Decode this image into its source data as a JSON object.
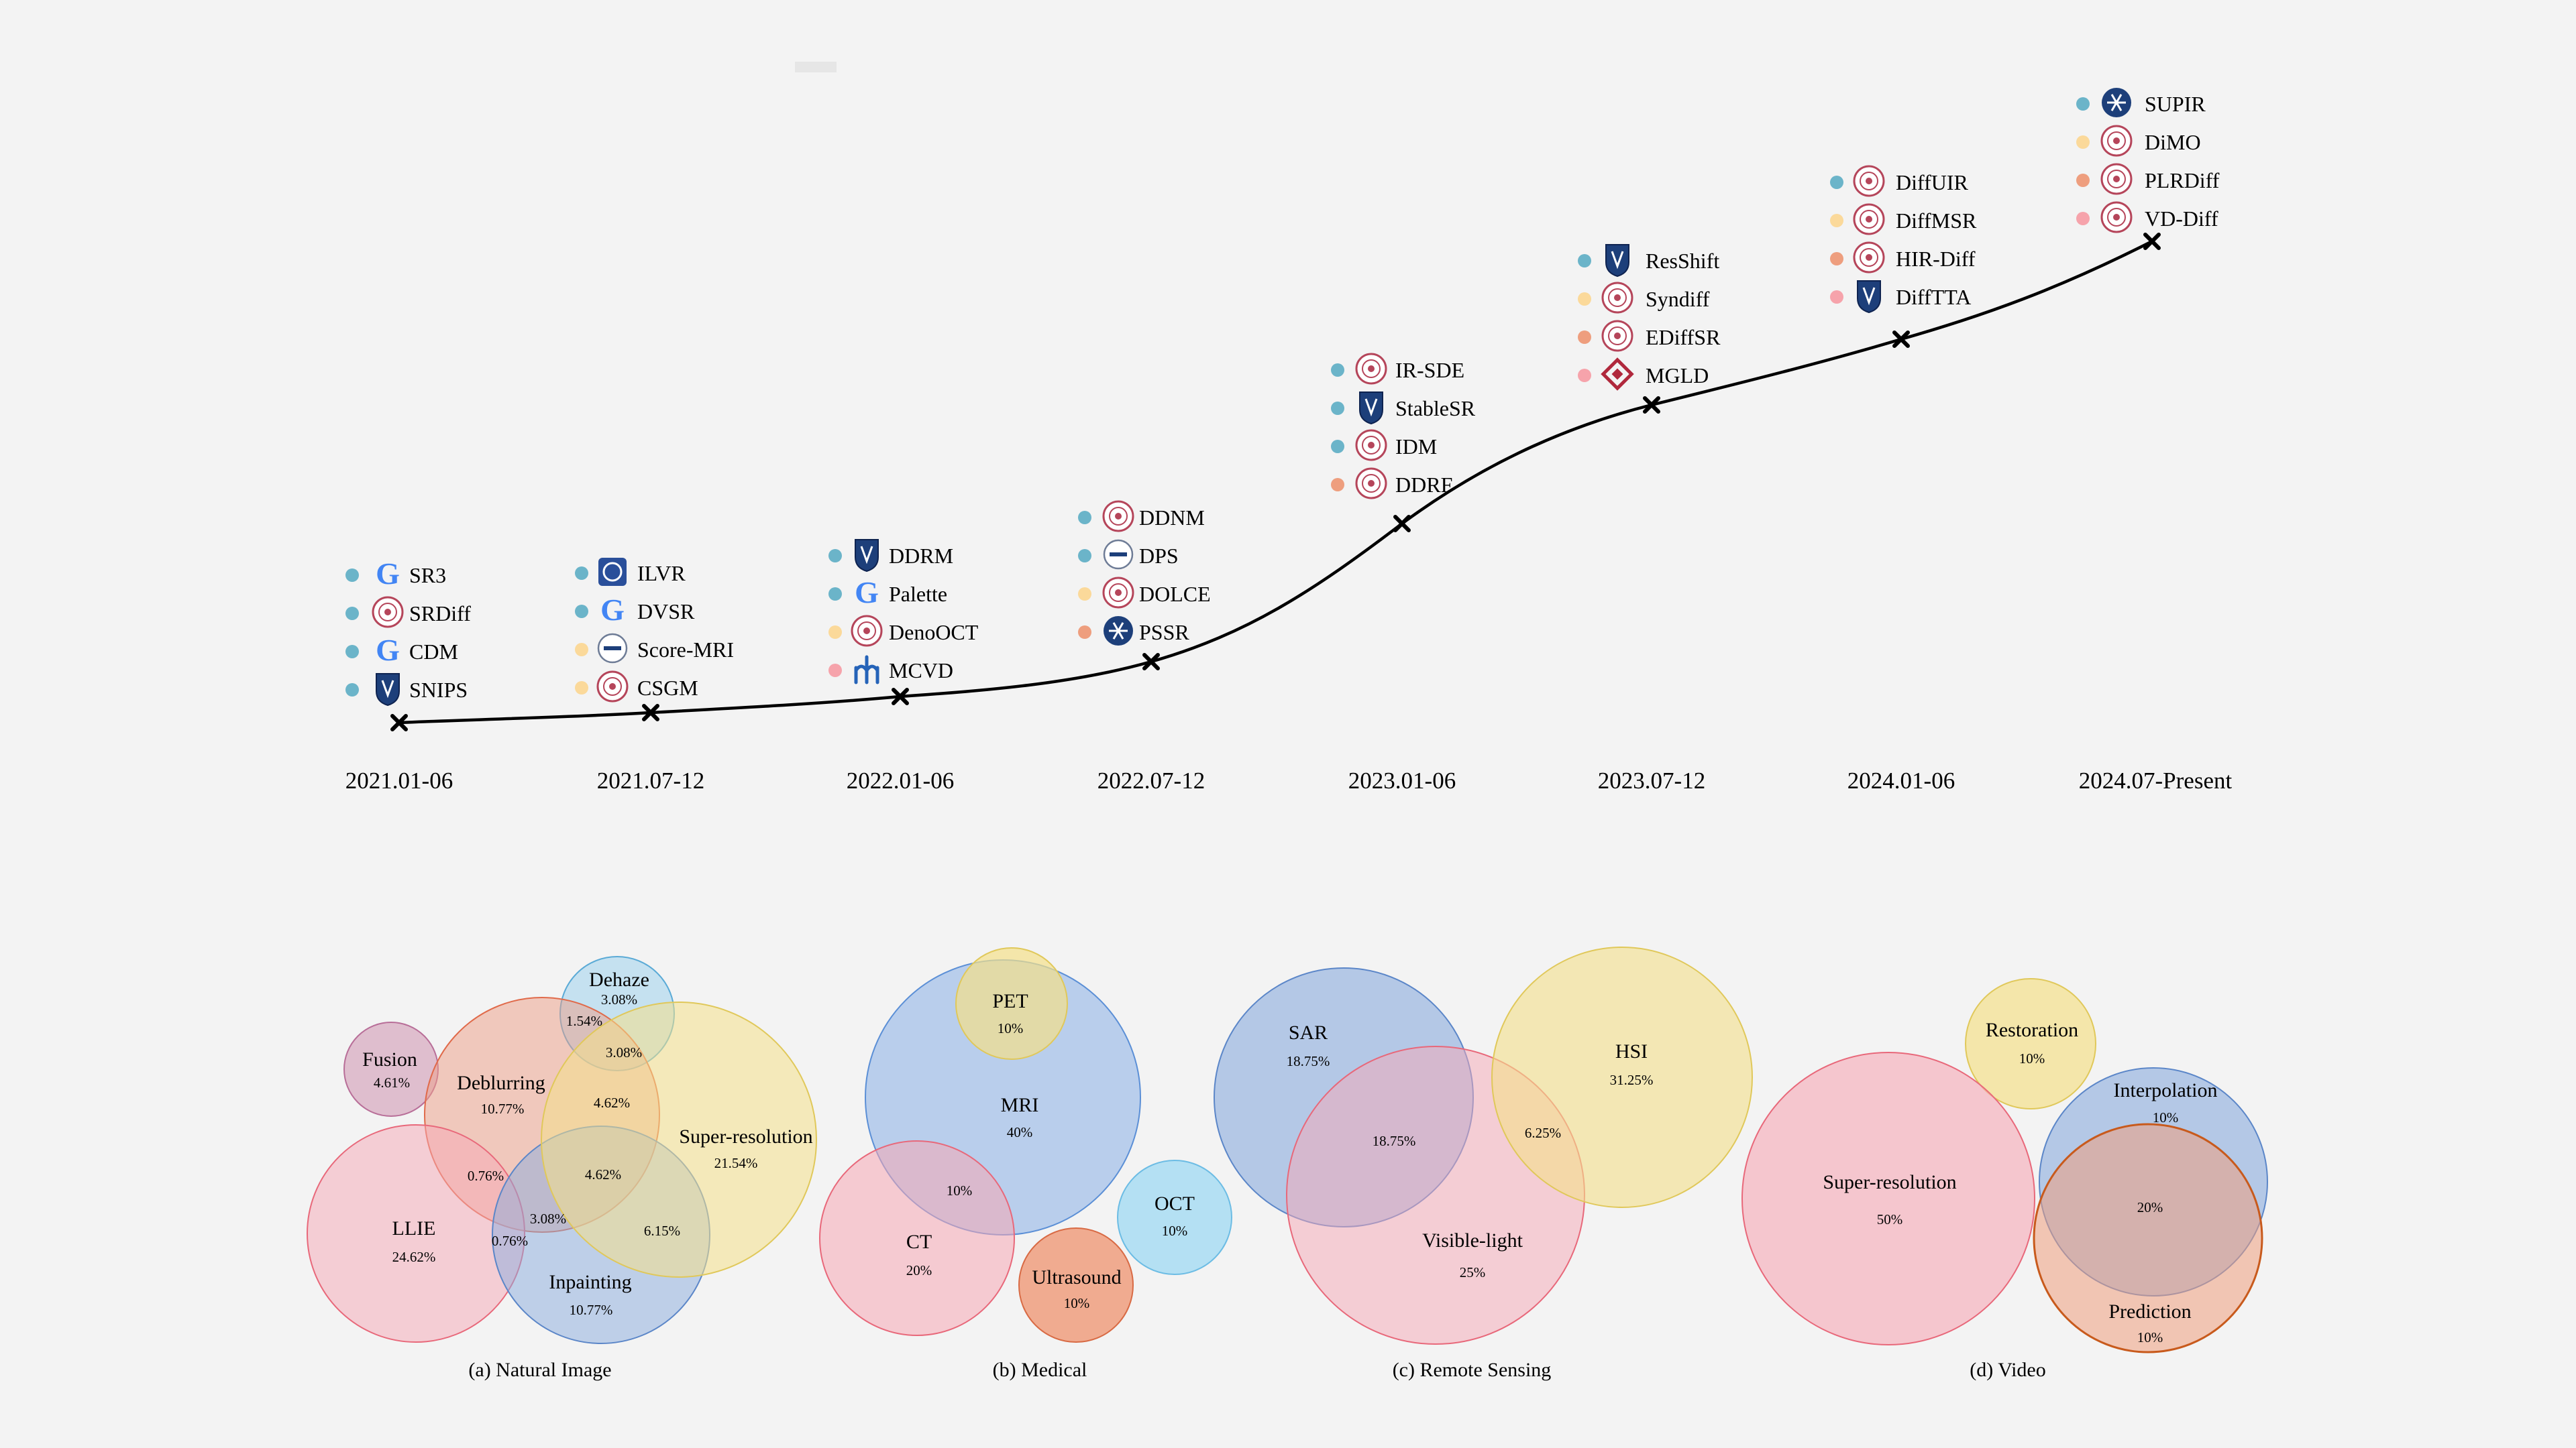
{
  "colors": {
    "natural": "#6bb4c9",
    "medical": "#fbd99a",
    "remote_sensing": "#ee9e7e",
    "video": "#f6a3ab"
  },
  "timeline": {
    "dates": [
      "2021.01-06",
      "2021.07-12",
      "2022.01-06",
      "2022.07-12",
      "2023.01-06",
      "2023.07-12",
      "2024.01-06",
      "2024.07-Present"
    ],
    "groups": [
      {
        "date": "2021.01-06",
        "methods": [
          {
            "name": "SR3",
            "category": "natural",
            "logo": "google-logo-icon"
          },
          {
            "name": "SRDiff",
            "category": "natural",
            "logo": "university-seal-icon"
          },
          {
            "name": "CDM",
            "category": "natural",
            "logo": "google-logo-icon"
          },
          {
            "name": "SNIPS",
            "category": "natural",
            "logo": "shield-crest-icon"
          }
        ]
      },
      {
        "date": "2021.07-12",
        "methods": [
          {
            "name": "ILVR",
            "category": "natural",
            "logo": "institute-seal-icon"
          },
          {
            "name": "DVSR",
            "category": "natural",
            "logo": "google-logo-icon"
          },
          {
            "name": "Score-MRI",
            "category": "medical",
            "logo": "kaist-logo-icon"
          },
          {
            "name": "CSGM",
            "category": "medical",
            "logo": "university-seal-icon"
          }
        ]
      },
      {
        "date": "2022.01-06",
        "methods": [
          {
            "name": "DDRM",
            "category": "natural",
            "logo": "shield-crest-icon"
          },
          {
            "name": "Palette",
            "category": "natural",
            "logo": "google-logo-icon"
          },
          {
            "name": "DenoOCT",
            "category": "medical",
            "logo": "university-seal-icon"
          },
          {
            "name": "MCVD",
            "category": "video",
            "logo": "mila-logo-icon"
          }
        ]
      },
      {
        "date": "2022.07-12",
        "methods": [
          {
            "name": "DDNM",
            "category": "natural",
            "logo": "university-seal-icon"
          },
          {
            "name": "DPS",
            "category": "natural",
            "logo": "kaist-logo-icon"
          },
          {
            "name": "DOLCE",
            "category": "medical",
            "logo": "university-seal-icon"
          },
          {
            "name": "PSSR",
            "category": "remote_sensing",
            "logo": "snowflake-seal-icon"
          }
        ]
      },
      {
        "date": "2023.01-06",
        "methods": [
          {
            "name": "IR-SDE",
            "category": "natural",
            "logo": "university-seal-icon"
          },
          {
            "name": "StableSR",
            "category": "natural",
            "logo": "shield-crest-icon"
          },
          {
            "name": "IDM",
            "category": "natural",
            "logo": "university-seal-icon"
          },
          {
            "name": "DDRF",
            "category": "remote_sensing",
            "logo": "university-seal-icon"
          }
        ]
      },
      {
        "date": "2023.07-12",
        "methods": [
          {
            "name": "ResShift",
            "category": "natural",
            "logo": "shield-crest-icon"
          },
          {
            "name": "Syndiff",
            "category": "medical",
            "logo": "university-seal-icon"
          },
          {
            "name": "EDiffSR",
            "category": "remote_sensing",
            "logo": "university-seal-icon"
          },
          {
            "name": "MGLD",
            "category": "video",
            "logo": "knot-logo-icon"
          }
        ]
      },
      {
        "date": "2024.01-06",
        "methods": [
          {
            "name": "DiffUIR",
            "category": "natural",
            "logo": "university-seal-icon"
          },
          {
            "name": "DiffMSR",
            "category": "medical",
            "logo": "university-seal-icon"
          },
          {
            "name": "HIR-Diff",
            "category": "remote_sensing",
            "logo": "university-seal-icon"
          },
          {
            "name": "DiffTTA",
            "category": "video",
            "logo": "shield-crest-icon"
          }
        ]
      },
      {
        "date": "2024.07-Present",
        "methods": [
          {
            "name": "SUPIR",
            "category": "natural",
            "logo": "snowflake-seal-icon"
          },
          {
            "name": "DiMO",
            "category": "medical",
            "logo": "university-seal-icon"
          },
          {
            "name": "PLRDiff",
            "category": "remote_sensing",
            "logo": "university-seal-icon"
          },
          {
            "name": "VD-Diff",
            "category": "video",
            "logo": "university-seal-icon"
          }
        ]
      }
    ]
  },
  "venn": {
    "natural": {
      "caption": "(a) Natural Image",
      "sets": [
        {
          "name": "Dehaze",
          "value": "3.08%"
        },
        {
          "name": "Fusion",
          "value": "4.61%"
        },
        {
          "name": "Deblurring",
          "value": "10.77%"
        },
        {
          "name": "Super-resolution",
          "value": "21.54%"
        },
        {
          "name": "LLIE",
          "value": "24.62%"
        },
        {
          "name": "Inpainting",
          "value": "10.77%"
        }
      ],
      "overlaps": [
        "1.54%",
        "3.08%",
        "4.62%",
        "0.76%",
        "4.62%",
        "3.08%",
        "0.76%",
        "6.15%"
      ]
    },
    "medical": {
      "caption": "(b) Medical",
      "sets": [
        {
          "name": "PET",
          "value": "10%"
        },
        {
          "name": "MRI",
          "value": "40%"
        },
        {
          "name": "CT",
          "value": "20%"
        },
        {
          "name": "OCT",
          "value": "10%"
        },
        {
          "name": "Ultrasound",
          "value": "10%"
        }
      ],
      "overlaps": [
        "10%"
      ]
    },
    "remote": {
      "caption": "(c) Remote Sensing",
      "sets": [
        {
          "name": "SAR",
          "value": "18.75%"
        },
        {
          "name": "HSI",
          "value": "31.25%"
        },
        {
          "name": "Visible-light",
          "value": "25%"
        }
      ],
      "overlaps": [
        "18.75%",
        "6.25%"
      ]
    },
    "video": {
      "caption": "(d) Video",
      "sets": [
        {
          "name": "Restoration",
          "value": "10%"
        },
        {
          "name": "Super-resolution",
          "value": "50%"
        },
        {
          "name": "Interpolation",
          "value": "10%"
        },
        {
          "name": "Prediction",
          "value": "10%"
        }
      ],
      "overlaps": [
        "20%"
      ]
    }
  }
}
